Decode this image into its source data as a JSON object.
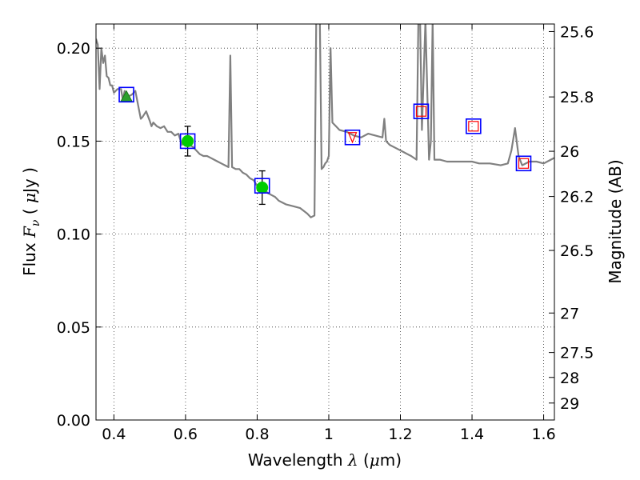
{
  "chart_data": {
    "type": "line",
    "xlabel": {
      "pre": "Wavelength  ",
      "sym": "λ",
      "mid": " (",
      "mu": "μ",
      "post": "m)"
    },
    "ylabel": {
      "pre": "Flux  ",
      "F": "F",
      "nu": "ν",
      "mid": "  ( ",
      "mu": "μ",
      "post": "Jy )"
    },
    "y2label": "Magnitude (AB)",
    "xlim": [
      0.35,
      1.63
    ],
    "ylim": [
      0.0,
      0.213
    ],
    "grid": true,
    "xticks": [
      0.4,
      0.6,
      0.8,
      1.0,
      1.2,
      1.4,
      1.6
    ],
    "xtick_labels": [
      "0.4",
      "0.6",
      "0.8",
      "1",
      "1.2",
      "1.4",
      "1.6"
    ],
    "yticks": [
      0.0,
      0.05,
      0.1,
      0.15,
      0.2
    ],
    "ytick_labels": [
      "0.00",
      "0.05",
      "0.10",
      "0.15",
      "0.20"
    ],
    "y2ticks": [
      {
        "label": "25.6",
        "mag": 25.6
      },
      {
        "label": "25.8",
        "mag": 25.8
      },
      {
        "label": "26",
        "mag": 26.0
      },
      {
        "label": "26.2",
        "mag": 26.2
      },
      {
        "label": "26.5",
        "mag": 26.5
      },
      {
        "label": "27",
        "mag": 27.0
      },
      {
        "label": "27.5",
        "mag": 27.5
      },
      {
        "label": "28",
        "mag": 28.0
      },
      {
        "label": "29",
        "mag": 29.0
      }
    ],
    "model_spectrum": {
      "color": "#808080",
      "x": [
        0.35,
        0.355,
        0.36,
        0.365,
        0.37,
        0.375,
        0.38,
        0.385,
        0.39,
        0.395,
        0.4,
        0.41,
        0.42,
        0.425,
        0.43,
        0.44,
        0.45,
        0.46,
        0.47,
        0.475,
        0.48,
        0.49,
        0.5,
        0.505,
        0.51,
        0.52,
        0.53,
        0.54,
        0.55,
        0.56,
        0.57,
        0.58,
        0.59,
        0.6,
        0.61,
        0.62,
        0.63,
        0.64,
        0.65,
        0.66,
        0.67,
        0.68,
        0.69,
        0.7,
        0.71,
        0.72,
        0.725,
        0.73,
        0.74,
        0.75,
        0.76,
        0.77,
        0.78,
        0.79,
        0.8,
        0.81,
        0.82,
        0.83,
        0.84,
        0.85,
        0.86,
        0.87,
        0.88,
        0.9,
        0.92,
        0.94,
        0.95,
        0.96,
        0.965,
        0.97,
        0.975,
        0.98,
        0.985,
        0.99,
        0.995,
        1.0,
        1.005,
        1.01,
        1.02,
        1.03,
        1.05,
        1.07,
        1.09,
        1.11,
        1.13,
        1.15,
        1.155,
        1.16,
        1.17,
        1.19,
        1.21,
        1.23,
        1.245,
        1.25,
        1.255,
        1.26,
        1.27,
        1.28,
        1.285,
        1.29,
        1.295,
        1.3,
        1.31,
        1.33,
        1.35,
        1.37,
        1.4,
        1.42,
        1.45,
        1.48,
        1.5,
        1.51,
        1.52,
        1.53,
        1.54,
        1.56,
        1.58,
        1.6,
        1.62,
        1.63
      ],
      "y": [
        0.205,
        0.202,
        0.178,
        0.2,
        0.192,
        0.196,
        0.185,
        0.184,
        0.18,
        0.18,
        0.176,
        0.178,
        0.178,
        0.172,
        0.177,
        0.174,
        0.175,
        0.177,
        0.167,
        0.162,
        0.163,
        0.166,
        0.161,
        0.158,
        0.16,
        0.158,
        0.157,
        0.158,
        0.155,
        0.155,
        0.153,
        0.154,
        0.148,
        0.15,
        0.148,
        0.147,
        0.145,
        0.143,
        0.142,
        0.142,
        0.141,
        0.14,
        0.139,
        0.138,
        0.137,
        0.136,
        0.196,
        0.136,
        0.135,
        0.135,
        0.133,
        0.132,
        0.13,
        0.129,
        0.126,
        0.125,
        0.124,
        0.122,
        0.121,
        0.12,
        0.118,
        0.117,
        0.116,
        0.115,
        0.114,
        0.111,
        0.109,
        0.11,
        0.215,
        0.215,
        0.215,
        0.135,
        0.136,
        0.138,
        0.139,
        0.142,
        0.2,
        0.16,
        0.158,
        0.156,
        0.155,
        0.153,
        0.152,
        0.154,
        0.153,
        0.152,
        0.162,
        0.15,
        0.148,
        0.146,
        0.144,
        0.142,
        0.14,
        0.213,
        0.215,
        0.156,
        0.215,
        0.14,
        0.15,
        0.215,
        0.14,
        0.14,
        0.14,
        0.139,
        0.139,
        0.139,
        0.139,
        0.138,
        0.138,
        0.137,
        0.138,
        0.145,
        0.157,
        0.142,
        0.137,
        0.139,
        0.139,
        0.138,
        0.14,
        0.141
      ]
    },
    "photometry": [
      {
        "x": 0.435,
        "y": 0.174,
        "model_y": 0.175,
        "marker": "triangle",
        "fill": "#2ca02c",
        "box": "#0000ff"
      },
      {
        "x": 0.606,
        "y": 0.15,
        "model_y": 0.15,
        "marker": "circle",
        "fill": "#00cc00",
        "yerr": 0.008,
        "box": "#0000ff"
      },
      {
        "x": 0.814,
        "y": 0.125,
        "model_y": 0.126,
        "marker": "circle",
        "fill": "#00cc00",
        "yerr": 0.009,
        "box": "#0000ff"
      },
      {
        "x": 1.066,
        "y": 0.152,
        "model_y": 0.152,
        "marker": "triangle-down",
        "fill": "none",
        "box": "#0000ff"
      },
      {
        "x": 1.258,
        "y": 0.166,
        "model_y": 0.166,
        "marker": "square",
        "fill": "none",
        "box": "#0000ff"
      },
      {
        "x": 1.404,
        "y": 0.158,
        "model_y": 0.158,
        "marker": "square",
        "fill": "none",
        "box": "#0000ff"
      },
      {
        "x": 1.544,
        "y": 0.138,
        "model_y": 0.138,
        "marker": "square",
        "fill": "none",
        "box": "#0000ff"
      }
    ],
    "colors": {
      "limit_marker": "#ff0000",
      "errorbar": "#000000",
      "grid": "#000000"
    }
  }
}
